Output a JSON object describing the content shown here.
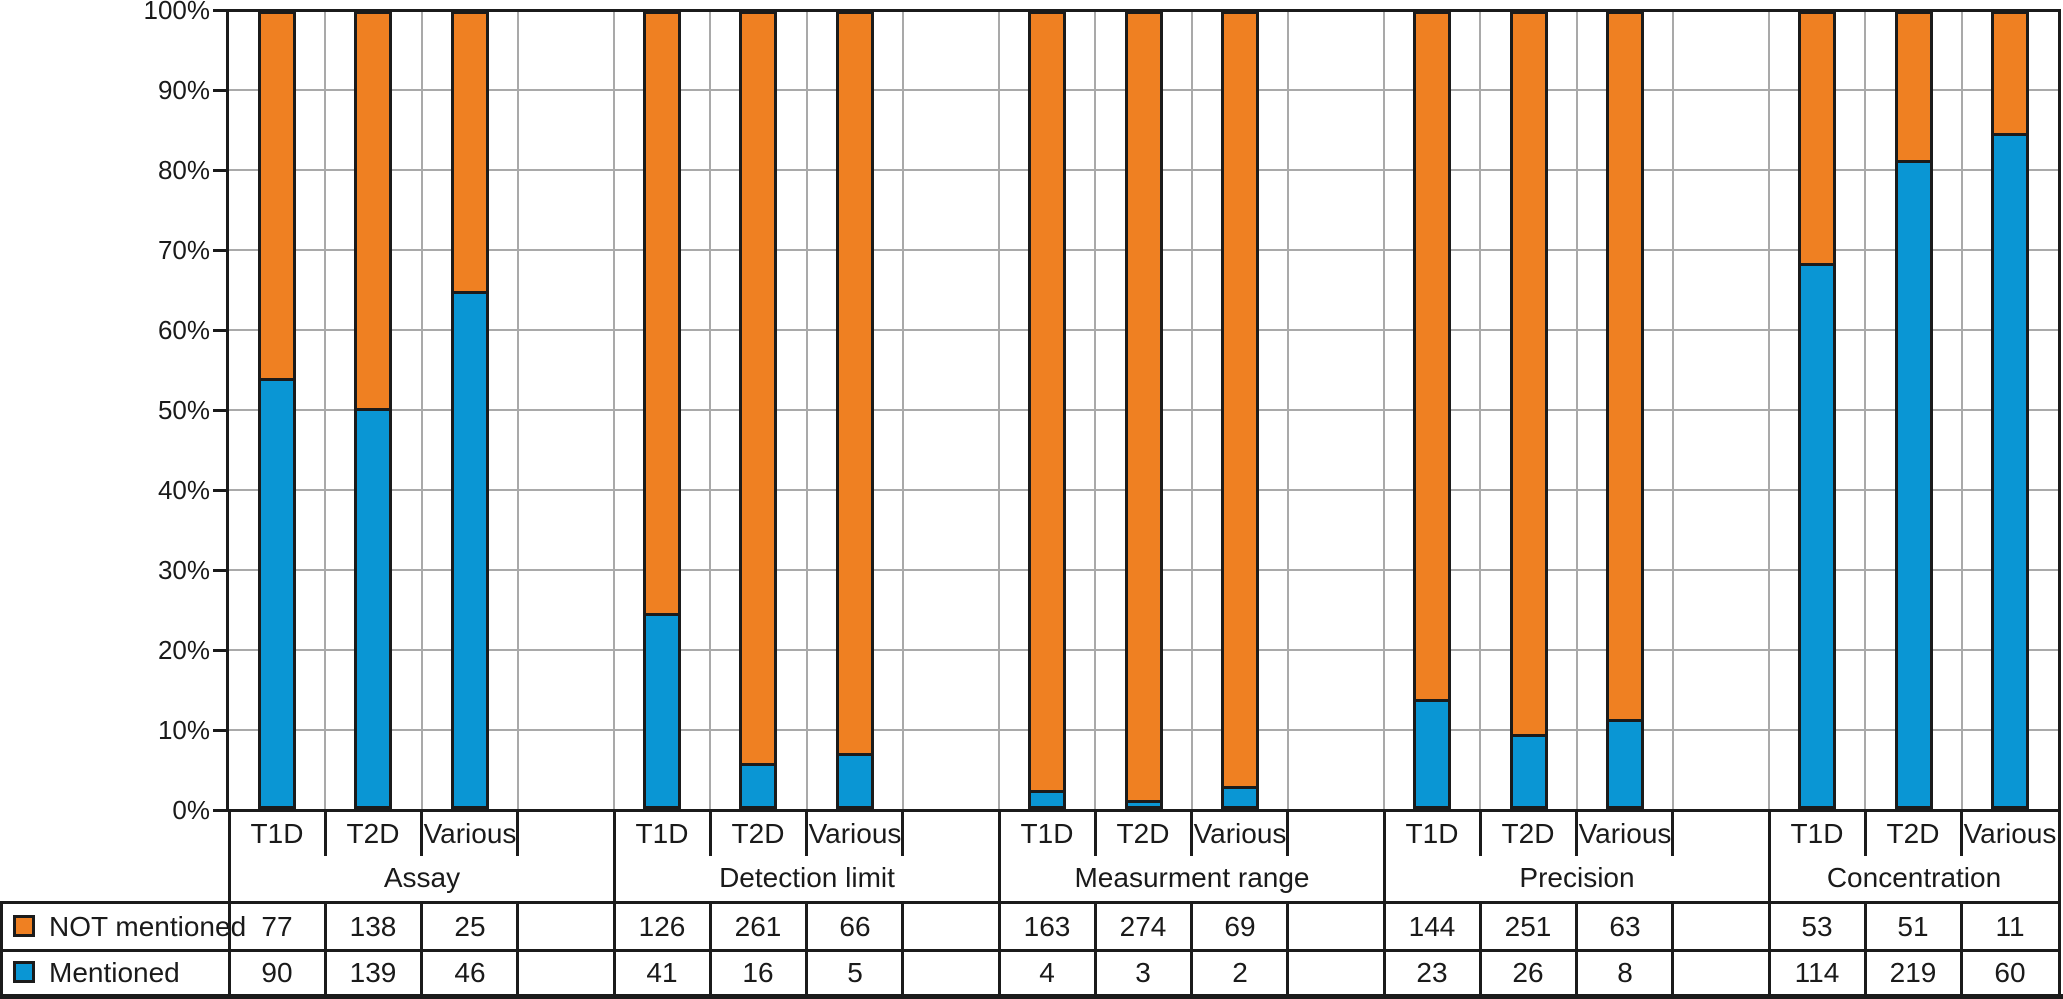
{
  "legend": {
    "rows": [
      {
        "label": "NOT mentioned",
        "color": "#EF8022"
      },
      {
        "label": "Mentioned",
        "color": "#0A96D4"
      }
    ]
  },
  "y_axis": {
    "tick_labels": [
      "100%",
      "90%",
      "80%",
      "70%",
      "60%",
      "50%",
      "40%",
      "30%",
      "20%",
      "10%",
      "0%"
    ]
  },
  "chart_data": {
    "type": "bar",
    "subtype": "100-percent-stacked-columns-with-data-table",
    "title": "",
    "xlabel": "",
    "ylabel": "",
    "ylim": [
      0,
      100
    ],
    "y_tick_labels": [
      "0%",
      "10%",
      "20%",
      "30%",
      "40%",
      "50%",
      "60%",
      "70%",
      "80%",
      "90%",
      "100%"
    ],
    "grid": true,
    "legend_position": "left-of-data-table",
    "categories_per_group": [
      "T1D",
      "T2D",
      "Various"
    ],
    "groups": [
      {
        "label": "Assay",
        "spacer_column_after": true
      },
      {
        "label": "Detection limit",
        "spacer_column_after": true
      },
      {
        "label": "Measurment range",
        "spacer_column_after": true
      },
      {
        "label": "Precision",
        "spacer_column_after": true
      },
      {
        "label": "Concentration",
        "spacer_column_after": false
      }
    ],
    "series": [
      {
        "name": "NOT mentioned",
        "color": "#EF8022",
        "stack_position": "top",
        "values": [
          [
            77,
            138,
            25
          ],
          [
            126,
            261,
            66
          ],
          [
            163,
            274,
            69
          ],
          [
            144,
            251,
            63
          ],
          [
            53,
            51,
            11
          ]
        ]
      },
      {
        "name": "Mentioned",
        "color": "#0A96D4",
        "stack_position": "bottom",
        "values": [
          [
            90,
            139,
            46
          ],
          [
            41,
            16,
            5
          ],
          [
            4,
            3,
            2
          ],
          [
            23,
            26,
            8
          ],
          [
            114,
            219,
            60
          ]
        ]
      }
    ],
    "bar_semantics": "Each column is normalized to 100%; blue bottom segment = Mentioned/(Mentioned+NOT mentioned), orange top segment = remainder."
  },
  "colors": {
    "bar_orange": "#EF8022",
    "bar_blue": "#0A96D4",
    "line_black": "#1b1b1b",
    "gridline_gray": "#a9a9a9",
    "background": "#ffffff"
  }
}
